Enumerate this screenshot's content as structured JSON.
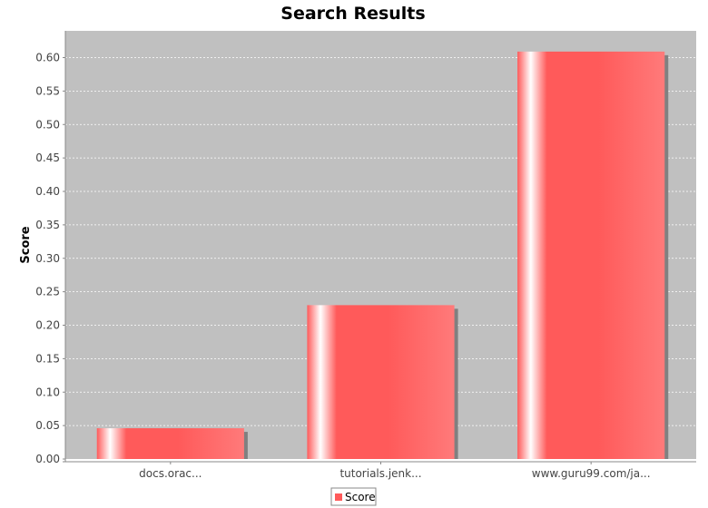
{
  "chart_data": {
    "type": "bar",
    "title": "Search Results",
    "xlabel": "",
    "ylabel": "Score",
    "categories": [
      "docs.orac...",
      "tutorials.jenk...",
      "www.guru99.com/ja..."
    ],
    "series": [
      {
        "name": "Score",
        "values": [
          0.046,
          0.23,
          0.609
        ]
      }
    ],
    "ylim": [
      0,
      0.64
    ],
    "yticks": [
      "0.00",
      "0.05",
      "0.10",
      "0.15",
      "0.20",
      "0.25",
      "0.30",
      "0.35",
      "0.40",
      "0.45",
      "0.50",
      "0.55",
      "0.60"
    ],
    "grid": true,
    "legend_position": "bottom-center",
    "colors": {
      "bar": "#ff5a5a",
      "plot_background": "#c0c0c0",
      "gridline": "#ffffff",
      "shadow": "#808080"
    }
  }
}
